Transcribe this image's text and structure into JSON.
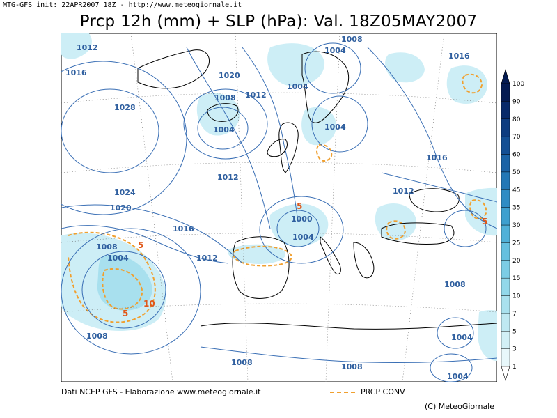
{
  "header": "MTG-GFS init: 22APR2007 18Z - http://www.meteogiornale.it",
  "title": "Prcp 12h (mm) + SLP (hPa): Val. 18Z05MAY2007",
  "footer": {
    "source": "Dati NCEP GFS - Elaborazione www.meteogiornale.it",
    "conv_label": "PRCP CONV",
    "copyright": "(C) MeteoGiornale"
  },
  "colors": {
    "isobar": "#3a6fb5",
    "coast": "#000000",
    "conv_contour": "#f0a030",
    "precip_light": "#d2f0f6",
    "precip_medium": "#9adcec"
  },
  "colorbar": {
    "levels": [
      "1",
      "3",
      "5",
      "7",
      "10",
      "15",
      "20",
      "25",
      "30",
      "35",
      "45",
      "50",
      "60",
      "70",
      "80",
      "90",
      "100"
    ],
    "colors": [
      "#ffffff",
      "#e8f8fb",
      "#d2f0f6",
      "#bfe9f2",
      "#a9e1ee",
      "#92d8ea",
      "#7ccde5",
      "#65c0df",
      "#50b1d8",
      "#3ea0cf",
      "#2f8cc4",
      "#2378b6",
      "#1a63a6",
      "#134f94",
      "#0d3c80",
      "#082a6a",
      "#041b52"
    ]
  },
  "isobar_labels": [
    {
      "t": "1012",
      "x": 1022,
      "y": 1022
    },
    {
      "t": "1008",
      "x": 1008,
      "y": 1008
    }
  ],
  "map_labels": {
    "isobars": [
      "1012",
      "1016",
      "1028",
      "1020",
      "1008",
      "1012",
      "1004",
      "1004",
      "1008",
      "1004",
      "1016",
      "1004",
      "1016",
      "1012",
      "1024",
      "1020",
      "1016",
      "1000",
      "1004",
      "1012",
      "1012",
      "1008",
      "1004",
      "1008",
      "1008",
      "1008",
      "1008",
      "1004",
      "1004"
    ],
    "precip": [
      "5",
      "5",
      "5",
      "10",
      "5"
    ]
  }
}
